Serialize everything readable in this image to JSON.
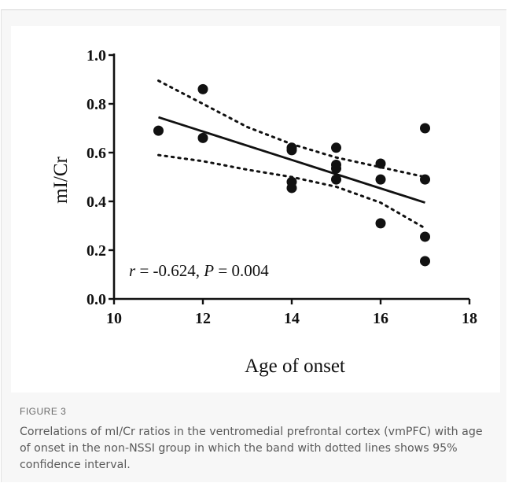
{
  "chart_data": {
    "type": "scatter",
    "xlabel": "Age of onset",
    "ylabel": "mI/Cr",
    "xlim": [
      10,
      18
    ],
    "ylim": [
      0.0,
      1.0
    ],
    "xticks": [
      "10",
      "12",
      "14",
      "16",
      "18"
    ],
    "yticks": [
      "0.0",
      "0.2",
      "0.4",
      "0.6",
      "0.8",
      "1.0"
    ],
    "grid": false,
    "points": [
      {
        "x": 11,
        "y": 0.69
      },
      {
        "x": 12,
        "y": 0.86
      },
      {
        "x": 12,
        "y": 0.66
      },
      {
        "x": 14,
        "y": 0.62
      },
      {
        "x": 14,
        "y": 0.61
      },
      {
        "x": 14,
        "y": 0.48
      },
      {
        "x": 14,
        "y": 0.455
      },
      {
        "x": 15,
        "y": 0.62
      },
      {
        "x": 15,
        "y": 0.55
      },
      {
        "x": 15,
        "y": 0.535
      },
      {
        "x": 15,
        "y": 0.49
      },
      {
        "x": 16,
        "y": 0.555
      },
      {
        "x": 16,
        "y": 0.49
      },
      {
        "x": 16,
        "y": 0.31
      },
      {
        "x": 17,
        "y": 0.7
      },
      {
        "x": 17,
        "y": 0.49
      },
      {
        "x": 17,
        "y": 0.255
      },
      {
        "x": 17,
        "y": 0.155
      }
    ],
    "fit_line": {
      "x": [
        11,
        17
      ],
      "y": [
        0.745,
        0.395
      ]
    },
    "ci_upper": {
      "x": [
        11,
        12,
        13,
        14,
        15,
        16,
        17
      ],
      "y": [
        0.895,
        0.8,
        0.705,
        0.635,
        0.58,
        0.54,
        0.5
      ]
    },
    "ci_lower": {
      "x": [
        11,
        12,
        13,
        14,
        15,
        16,
        17
      ],
      "y": [
        0.59,
        0.565,
        0.53,
        0.5,
        0.46,
        0.395,
        0.29
      ]
    },
    "annotation": {
      "r_label": "r",
      "r_value": " = -0.624, ",
      "p_label": "P",
      "p_value": " = 0.004"
    }
  },
  "figure_label": "FIGURE 3",
  "caption": "Correlations of mI/Cr ratios in the ventromedial prefrontal cortex (vmPFC) with age of onset in the non-NSSI group in which the band with dotted lines shows 95% confidence interval."
}
